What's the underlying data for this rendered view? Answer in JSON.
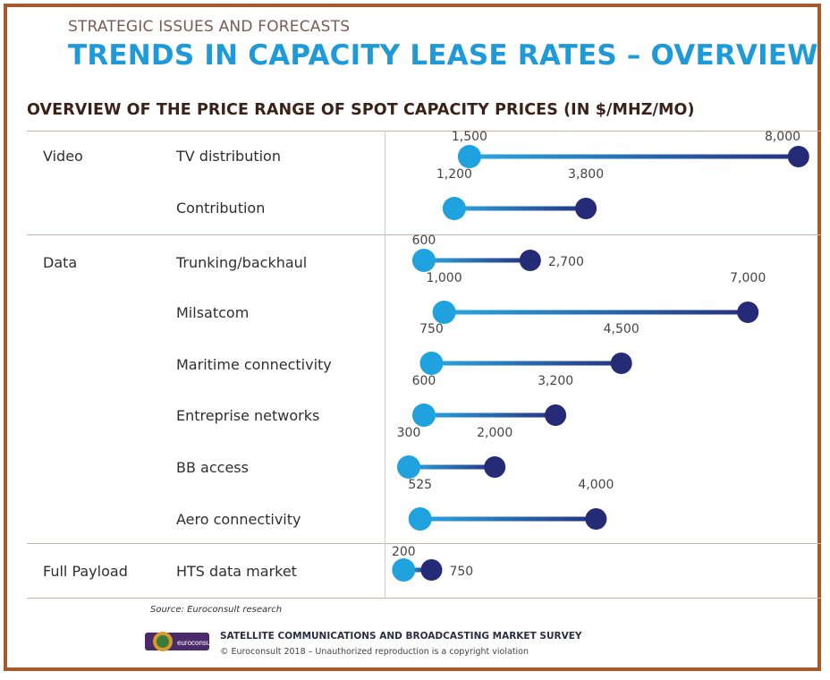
{
  "header": {
    "kicker": "STRATEGIC ISSUES AND FORECASTS",
    "headline": "TRENDS IN CAPACITY LEASE RATES – OVERVIEW"
  },
  "chart_data": {
    "type": "dumbbell",
    "title": "OVERVIEW OF THE PRICE RANGE OF SPOT CAPACITY PRICES (IN $/MHZ/MO)",
    "unit": "$/MHz/mo",
    "xlim": [
      0,
      8000
    ],
    "colors": {
      "low": "#1fa2de",
      "high": "#262b78",
      "line_low": "#2aa7e0",
      "line_high": "#27307f"
    },
    "groups": [
      {
        "label": "Video",
        "rows": [
          {
            "label": "TV distribution",
            "low": 1500,
            "high": 8000,
            "low_label": "1,500",
            "high_label": "8,000"
          },
          {
            "label": "Contribution",
            "low": 1200,
            "high": 3800,
            "low_label": "1,200",
            "high_label": "3,800"
          }
        ]
      },
      {
        "label": "Data",
        "rows": [
          {
            "label": "Trunking/backhaul",
            "low": 600,
            "high": 2700,
            "low_label": "600",
            "high_label": "2,700"
          },
          {
            "label": "Milsatcom",
            "low": 1000,
            "high": 7000,
            "low_label": "1,000",
            "high_label": "7,000"
          },
          {
            "label": "Maritime connectivity",
            "low": 750,
            "high": 4500,
            "low_label": "750",
            "high_label": "4,500"
          },
          {
            "label": "Entreprise networks",
            "low": 600,
            "high": 3200,
            "low_label": "600",
            "high_label": "3,200"
          },
          {
            "label": "BB access",
            "low": 300,
            "high": 2000,
            "low_label": "300",
            "high_label": "2,000"
          },
          {
            "label": "Aero connectivity",
            "low": 525,
            "high": 4000,
            "low_label": "525",
            "high_label": "4,000"
          }
        ]
      },
      {
        "label": "Full Payload",
        "rows": [
          {
            "label": "HTS data market",
            "low": 200,
            "high": 750,
            "low_label": "200",
            "high_label": "750"
          }
        ]
      }
    ]
  },
  "source": "Source: Euroconsult research",
  "footer": {
    "title": "SATELLITE COMMUNICATIONS AND BROADCASTING MARKET SURVEY",
    "copyright": "© Euroconsult 2018 – Unauthorized reproduction is a copyright violation",
    "logo_text": "euroconsult"
  }
}
